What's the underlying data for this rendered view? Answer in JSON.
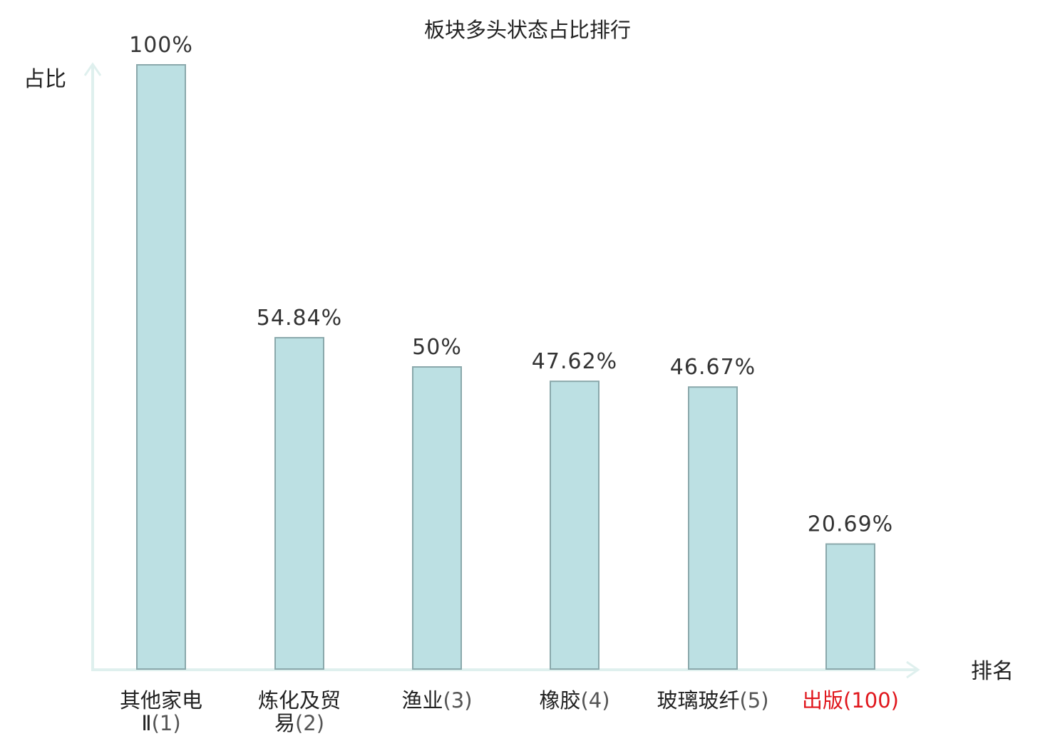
{
  "chart_data": {
    "type": "bar",
    "title": "板块多头状态占比排行",
    "ylabel": "占比",
    "xlabel": "排名",
    "ylim": [
      0,
      100
    ],
    "categories": [
      {
        "name": "其他家电Ⅱ",
        "rank": "(1)"
      },
      {
        "name": "炼化及贸易",
        "rank": "(2)"
      },
      {
        "name": "渔业",
        "rank": "(3)"
      },
      {
        "name": "橡胶",
        "rank": "(4)"
      },
      {
        "name": "玻璃玻纤",
        "rank": "(5)"
      },
      {
        "name": "出版",
        "rank": "(100)",
        "highlight": true
      }
    ],
    "values": [
      100,
      54.84,
      50,
      47.62,
      46.67,
      20.69
    ],
    "value_labels": [
      "100%",
      "54.84%",
      "50%",
      "47.62%",
      "46.67%",
      "20.69%"
    ],
    "grid": false,
    "legend": "none",
    "colors": {
      "bar_fill": "#bce0e3",
      "bar_stroke": "#8aa8ab",
      "axis": "#dff0ee",
      "highlight": "#e0161c"
    }
  }
}
